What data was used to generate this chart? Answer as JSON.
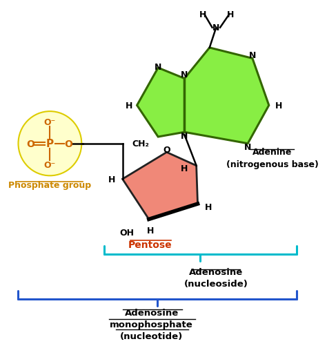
{
  "bg_color": "#ffffff",
  "adenine_color": "#88ee44",
  "adenine_edge": "#336600",
  "pentose_color": "#f08878",
  "pentose_edge": "#222222",
  "phosphate_bg": "#ffffcc",
  "phosphate_edge": "#dddd00",
  "brace_color_cyan": "#00bbcc",
  "brace_color_blue": "#2255cc",
  "phosphate_label_color": "#cc8800",
  "pentose_label_color": "#cc3300",
  "adenine_label": "Adenine\n(nitrogenous base)",
  "pentose_label": "Pentose",
  "phosphate_label": "Phosphate group",
  "adenosine_label": "Adenosine\n(nucleoside)",
  "amp_label": "Adenosine\nmonophosphate\n(nucleotide)"
}
